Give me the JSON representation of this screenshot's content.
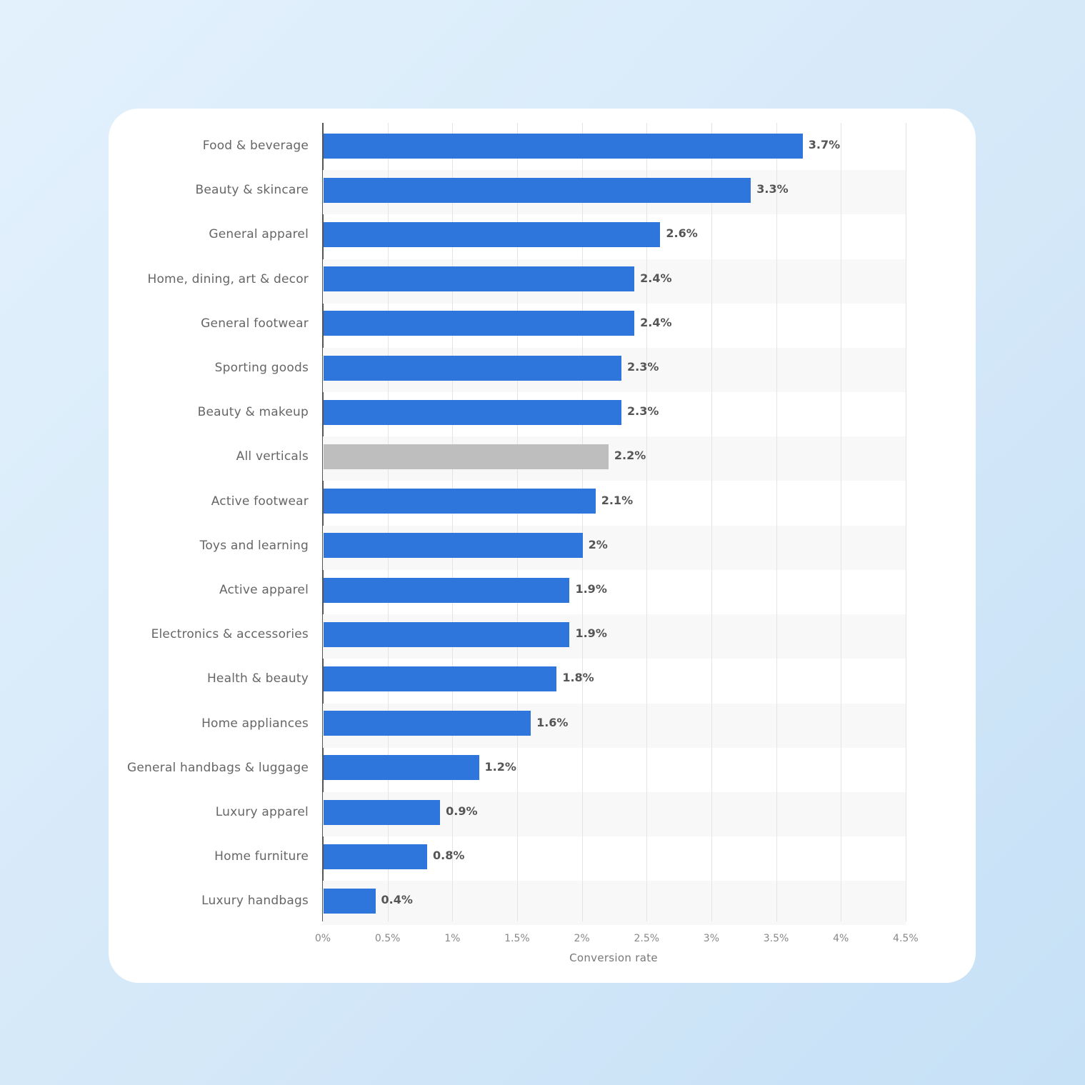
{
  "chart_data": {
    "type": "bar",
    "orientation": "horizontal",
    "title": "",
    "xlabel": "Conversion rate",
    "ylabel": "",
    "xlim": [
      0,
      4.5
    ],
    "x_tick_labels": [
      "0%",
      "0.5%",
      "1%",
      "1.5%",
      "2%",
      "2.5%",
      "3%",
      "3.5%",
      "4%",
      "4.5%"
    ],
    "grid": true,
    "legend": null,
    "categories": [
      "Food & beverage",
      "Beauty & skincare",
      "General apparel",
      "Home, dining, art & decor",
      "General footwear",
      "Sporting goods",
      "Beauty & makeup",
      "All verticals",
      "Active footwear",
      "Toys and learning",
      "Active apparel",
      "Electronics & accessories",
      "Health & beauty",
      "Home appliances",
      "General handbags & luggage",
      "Luxury apparel",
      "Home furniture",
      "Luxury handbags"
    ],
    "values": [
      3.7,
      3.3,
      2.6,
      2.4,
      2.4,
      2.3,
      2.3,
      2.2,
      2.1,
      2.0,
      1.9,
      1.9,
      1.8,
      1.6,
      1.2,
      0.9,
      0.8,
      0.4
    ],
    "value_labels": [
      "3.7%",
      "3.3%",
      "2.6%",
      "2.4%",
      "2.4%",
      "2.3%",
      "2.3%",
      "2.2%",
      "2.1%",
      "2%",
      "1.9%",
      "1.9%",
      "1.8%",
      "1.6%",
      "1.2%",
      "0.9%",
      "0.8%",
      "0.4%"
    ],
    "highlight_index": 7,
    "colors": {
      "bar": "#2e76dc",
      "highlight": "#bebebe"
    }
  }
}
